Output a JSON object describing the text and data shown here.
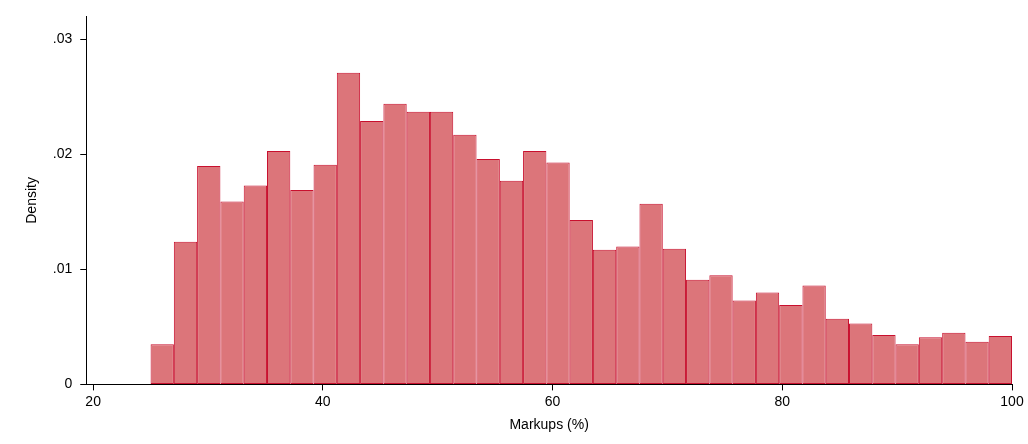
{
  "chart_data": {
    "type": "histogram",
    "xlabel": "Markups (%)",
    "ylabel": "Density",
    "bins": [
      25,
      27.03,
      29.05,
      31.08,
      33.11,
      35.14,
      37.16,
      39.19,
      41.22,
      43.24,
      45.27,
      47.3,
      49.32,
      51.35,
      53.38,
      55.41,
      57.43,
      59.46,
      61.49,
      63.51,
      65.54,
      67.57,
      69.59,
      71.62,
      73.65,
      75.68,
      77.7,
      79.73,
      81.76,
      83.78,
      85.81,
      87.84,
      89.86,
      91.89,
      93.92,
      95.95,
      97.97,
      100
    ],
    "values": [
      0.0035,
      0.0124,
      0.019,
      0.0159,
      0.0173,
      0.0203,
      0.0169,
      0.0191,
      0.0271,
      0.0229,
      0.0244,
      0.0237,
      0.0237,
      0.0217,
      0.0196,
      0.0177,
      0.0203,
      0.0193,
      0.0143,
      0.0117,
      0.012,
      0.0157,
      0.0118,
      0.0091,
      0.0095,
      0.0073,
      0.008,
      0.0069,
      0.0086,
      0.0057,
      0.0053,
      0.0043,
      0.0035,
      0.0041,
      0.0045,
      0.0037,
      0.0042
    ],
    "color": "#dc757a",
    "xlim": [
      19.4,
      100
    ],
    "xticks": [
      20,
      40,
      60,
      80,
      100
    ],
    "ylim": [
      0,
      0.032
    ],
    "yticks": [
      0,
      {
        "value": 0.01,
        "label": ".01"
      },
      {
        "value": 0.02,
        "label": ".02"
      },
      {
        "value": 0.03,
        "label": ".03"
      }
    ],
    "grid": false,
    "legend": false
  }
}
